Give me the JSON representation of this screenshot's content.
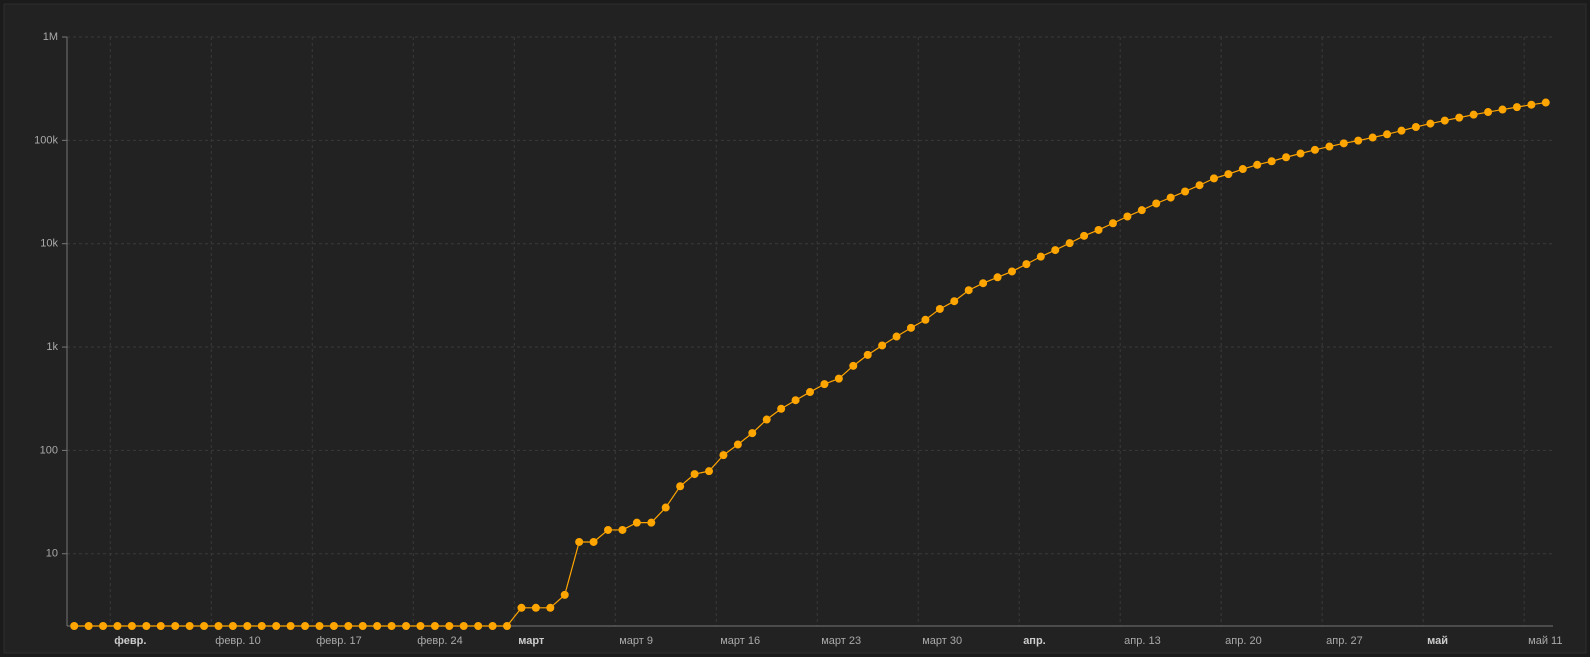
{
  "chart_data": {
    "type": "line",
    "log_y": true,
    "grid": true,
    "color": "#ffa500",
    "x": [
      "01-31",
      "02-01",
      "02-02",
      "02-03",
      "02-04",
      "02-05",
      "02-06",
      "02-07",
      "02-08",
      "02-09",
      "02-10",
      "02-11",
      "02-12",
      "02-13",
      "02-14",
      "02-15",
      "02-16",
      "02-17",
      "02-18",
      "02-19",
      "02-20",
      "02-21",
      "02-22",
      "02-23",
      "02-24",
      "02-25",
      "02-26",
      "02-27",
      "02-28",
      "02-29",
      "03-01",
      "03-02",
      "03-03",
      "03-04",
      "03-05",
      "03-06",
      "03-07",
      "03-08",
      "03-09",
      "03-10",
      "03-11",
      "03-12",
      "03-13",
      "03-14",
      "03-15",
      "03-16",
      "03-17",
      "03-18",
      "03-19",
      "03-20",
      "03-21",
      "03-22",
      "03-23",
      "03-24",
      "03-25",
      "03-26",
      "03-27",
      "03-28",
      "03-29",
      "03-30",
      "03-31",
      "04-01",
      "04-02",
      "04-03",
      "04-04",
      "04-05",
      "04-06",
      "04-07",
      "04-08",
      "04-09",
      "04-10",
      "04-11",
      "04-12",
      "04-13",
      "04-14",
      "04-15",
      "04-16",
      "04-17",
      "04-18",
      "04-19",
      "04-20",
      "04-21",
      "04-22",
      "04-23",
      "04-24",
      "04-25",
      "04-26",
      "04-27",
      "04-28",
      "04-29",
      "04-30",
      "05-01",
      "05-02",
      "05-03",
      "05-04",
      "05-05",
      "05-06",
      "05-07",
      "05-08",
      "05-09",
      "05-10",
      "05-11",
      "05-12"
    ],
    "values": [
      2,
      2,
      2,
      2,
      2,
      2,
      2,
      2,
      2,
      2,
      2,
      2,
      2,
      2,
      2,
      2,
      2,
      2,
      2,
      2,
      2,
      2,
      2,
      2,
      2,
      2,
      2,
      2,
      2,
      2,
      2,
      3,
      3,
      3,
      4,
      13,
      13,
      17,
      17,
      20,
      20,
      28,
      45,
      59,
      63,
      90,
      114,
      147,
      199,
      253,
      306,
      367,
      438,
      495,
      658,
      840,
      1036,
      1264,
      1534,
      1836,
      2337,
      2777,
      3548,
      4149,
      4731,
      5389,
      6343,
      7497,
      8672,
      10131,
      11917,
      13584,
      15770,
      18328,
      21102,
      24490,
      27938,
      32008,
      36793,
      42853,
      47121,
      52763,
      57999,
      62773,
      68622,
      74588,
      80949,
      87147,
      93558,
      99399,
      106498,
      114431,
      124054,
      134686,
      145268,
      155370,
      165929,
      177160,
      187859,
      198676,
      209688,
      221344,
      232243
    ],
    "xlim": [
      "01-31",
      "05-13"
    ],
    "xticks": [
      {
        "value": "02-03",
        "label": "февр."
      },
      {
        "value": "02-10",
        "label": "февр. 10"
      },
      {
        "value": "02-17",
        "label": "февр. 17"
      },
      {
        "value": "02-24",
        "label": "февр. 24"
      },
      {
        "value": "03-02",
        "label": "март"
      },
      {
        "value": "03-09",
        "label": "март 9"
      },
      {
        "value": "03-16",
        "label": "март 16"
      },
      {
        "value": "03-23",
        "label": "март 23"
      },
      {
        "value": "03-30",
        "label": "март 30"
      },
      {
        "value": "04-06",
        "label": "апр."
      },
      {
        "value": "04-13",
        "label": "апр. 13"
      },
      {
        "value": "04-20",
        "label": "апр. 20"
      },
      {
        "value": "04-27",
        "label": "апр. 27"
      },
      {
        "value": "05-04",
        "label": "май"
      },
      {
        "value": "05-11",
        "label": "май 11"
      }
    ],
    "ylim": [
      2,
      1000000
    ],
    "yticks": [
      10,
      100,
      {
        "value": 1000,
        "label": "1k"
      },
      {
        "value": 10000,
        "label": "10k"
      },
      {
        "value": 100000,
        "label": "100k"
      },
      {
        "value": 1000000,
        "label": "1M"
      }
    ]
  }
}
